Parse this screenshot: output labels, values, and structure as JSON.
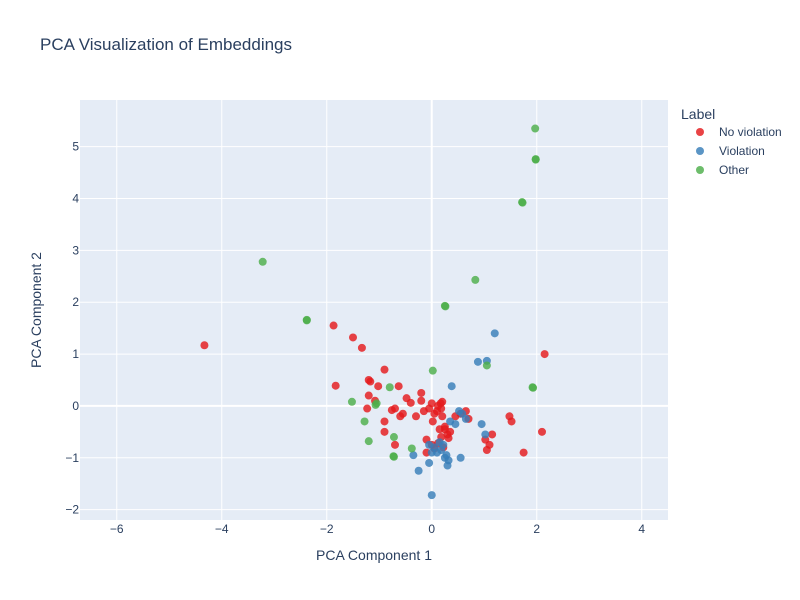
{
  "chart_data": {
    "type": "scatter",
    "title": "PCA Visualization of Embeddings",
    "xlabel": "PCA Component 1",
    "ylabel": "PCA Component 2",
    "xlim": [
      -6.7,
      4.5
    ],
    "ylim": [
      -2.2,
      5.9
    ],
    "xticks": [
      -6,
      -4,
      -2,
      0,
      2,
      4
    ],
    "xtick_labels": [
      "−6",
      "−4",
      "−2",
      "0",
      "2",
      "4"
    ],
    "yticks": [
      -2,
      -1,
      0,
      1,
      2,
      3,
      4,
      5
    ],
    "ytick_labels": [
      "−2",
      "−1",
      "0",
      "1",
      "2",
      "3",
      "4",
      "5"
    ],
    "grid": true,
    "legend": {
      "title": "Label",
      "placement": "right"
    },
    "background_color": "#e5ecf6",
    "series": [
      {
        "name": "No violation",
        "color": "#e41a1c",
        "x": [
          -4.33,
          -1.87,
          -1.5,
          -1.33,
          -1.83,
          -1.2,
          -1.17,
          -1.02,
          -0.9,
          -0.63,
          -1.2,
          -1.08,
          -1.23,
          -0.9,
          -0.9,
          -0.7,
          -0.76,
          -0.7,
          -0.6,
          -0.55,
          -0.48,
          -0.4,
          -0.3,
          -0.2,
          -0.2,
          -0.15,
          -0.1,
          -0.05,
          0.0,
          0.02,
          0.05,
          0.1,
          0.12,
          0.15,
          0.17,
          0.18,
          0.2,
          0.2,
          0.22,
          0.25,
          0.3,
          0.32,
          0.35,
          -0.1,
          0.0,
          0.05,
          0.12,
          0.18,
          0.25,
          0.45,
          0.55,
          0.65,
          0.7,
          1.02,
          1.05,
          1.1,
          1.15,
          1.48,
          1.52,
          1.75,
          2.1,
          2.15
        ],
        "y": [
          1.17,
          1.55,
          1.32,
          1.12,
          0.39,
          0.5,
          0.47,
          0.38,
          0.7,
          0.38,
          0.2,
          0.1,
          -0.05,
          -0.3,
          -0.5,
          -0.75,
          -0.08,
          -0.05,
          -0.2,
          -0.15,
          0.15,
          0.06,
          -0.2,
          0.25,
          0.1,
          -0.1,
          -0.65,
          -0.05,
          0.05,
          -0.3,
          -0.15,
          -0.1,
          0.0,
          -0.45,
          0.05,
          -0.05,
          -0.2,
          0.08,
          -0.8,
          -0.45,
          -0.55,
          -0.62,
          -0.5,
          -0.9,
          -0.75,
          -0.82,
          -0.72,
          -0.6,
          -0.4,
          -0.2,
          -0.15,
          -0.1,
          -0.25,
          -0.65,
          -0.85,
          -0.75,
          -0.55,
          -0.2,
          -0.3,
          -0.9,
          -0.5,
          1.0
        ]
      },
      {
        "name": "Violation",
        "color": "#377eb8",
        "x": [
          1.2,
          1.05,
          0.88,
          0.38,
          0.52,
          0.45,
          0.35,
          0.58,
          0.65,
          0.95,
          1.02,
          -0.35,
          -0.05,
          0.0,
          0.05,
          0.1,
          0.15,
          0.18,
          0.22,
          0.25,
          0.28,
          0.3,
          0.32,
          0.55,
          -0.25,
          -0.05,
          0.0
        ],
        "y": [
          1.4,
          0.87,
          0.85,
          0.38,
          -0.1,
          -0.35,
          -0.3,
          -0.15,
          -0.25,
          -0.35,
          -0.55,
          -0.95,
          -0.75,
          -0.9,
          -0.8,
          -0.9,
          -0.7,
          -0.85,
          -0.75,
          -1.0,
          -0.95,
          -1.15,
          -1.05,
          -1.0,
          -1.25,
          -1.1,
          -1.72
        ]
      },
      {
        "name": "Other",
        "color": "#4daf4a",
        "x": [
          1.97,
          1.98,
          1.98,
          1.72,
          1.73,
          -3.22,
          0.83,
          0.25,
          0.26,
          -2.38,
          -2.38,
          1.05,
          0.02,
          1.92,
          1.93,
          -0.8,
          -1.52,
          -1.07,
          -1.28,
          -0.72,
          -1.2,
          -0.38,
          -0.73,
          -0.72,
          -1.05
        ],
        "y": [
          5.35,
          4.76,
          4.75,
          3.93,
          3.92,
          2.78,
          2.43,
          1.93,
          1.92,
          1.66,
          1.65,
          0.78,
          0.68,
          0.36,
          0.35,
          0.36,
          0.08,
          0.02,
          -0.3,
          -0.6,
          -0.68,
          -0.82,
          -0.97,
          -0.98,
          0.05
        ]
      }
    ]
  }
}
